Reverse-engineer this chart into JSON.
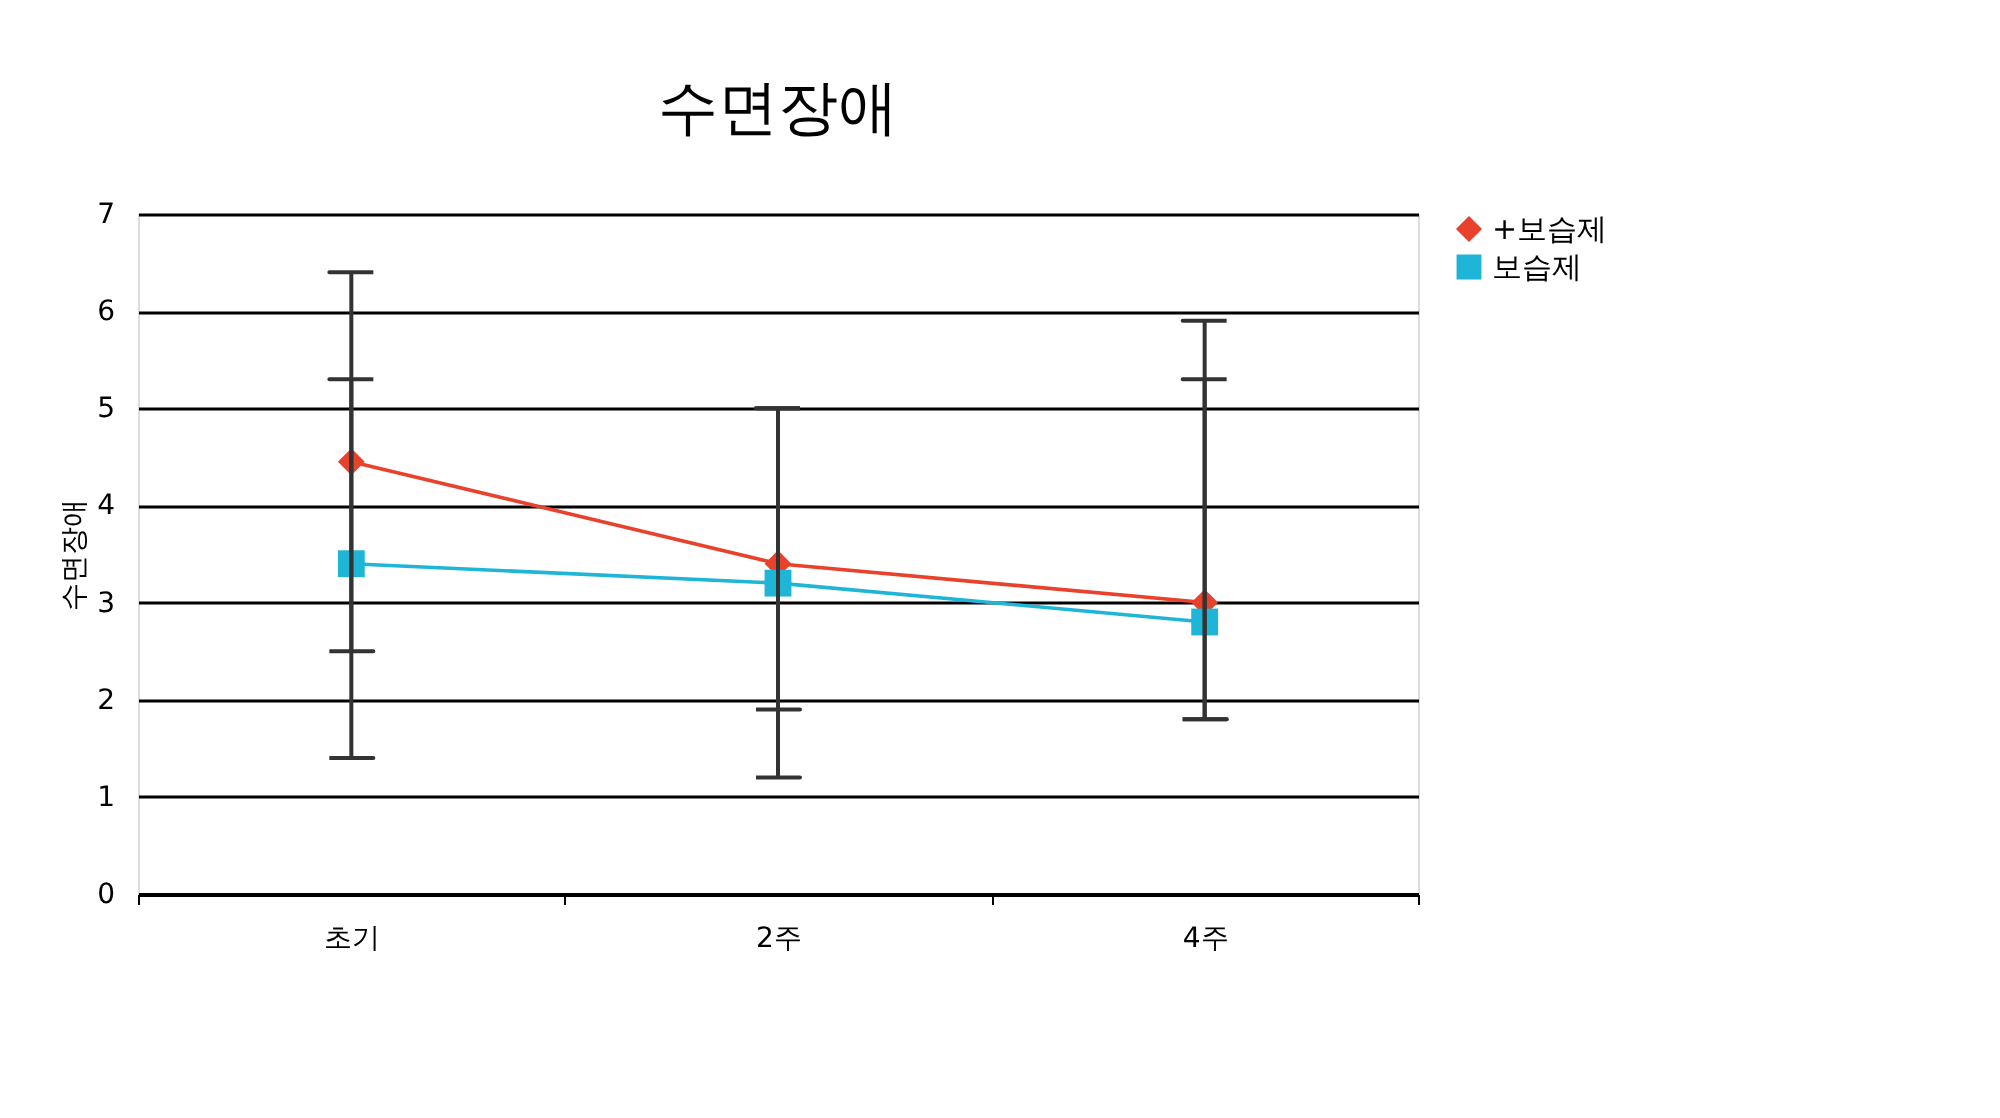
{
  "chart_data": {
    "type": "line",
    "title": "수면장애",
    "ylabel": "수면장애",
    "categories": [
      "초기",
      "2주",
      "4주"
    ],
    "series": [
      {
        "name": "+보습제",
        "color": "#e8412c",
        "marker": "diamond",
        "values": [
          4.45,
          3.4,
          3.0
        ],
        "errors": [
          [
            2.5,
            6.4
          ],
          [
            1.9,
            5.0
          ],
          [
            1.8,
            5.9
          ]
        ]
      },
      {
        "name": "보습제",
        "color": "#1fb5d6",
        "marker": "square",
        "values": [
          3.4,
          3.2,
          2.8
        ],
        "errors": [
          [
            1.4,
            5.3
          ],
          [
            1.2,
            5.0
          ],
          [
            1.8,
            5.3
          ]
        ]
      }
    ],
    "ylim": [
      0,
      7
    ],
    "yticks": [
      0,
      1,
      2,
      3,
      4,
      5,
      6,
      7
    ],
    "grid": "y",
    "legend": "right",
    "line_style": "solid"
  }
}
